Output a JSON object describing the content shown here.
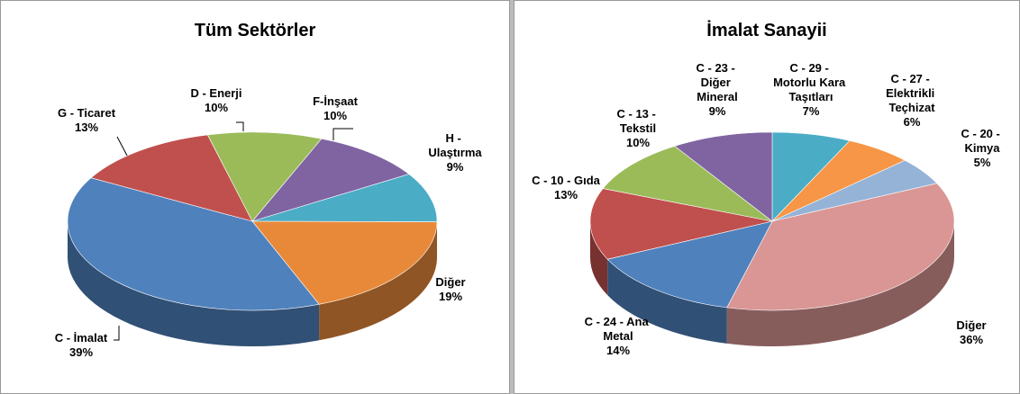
{
  "chart_data": [
    {
      "type": "pie",
      "title": "Tüm Sektörler",
      "categories": [
        "F-İnşaat",
        "H -\nUlaştırma",
        "Diğer",
        "C - İmalat",
        "G - Ticaret",
        "D - Enerji"
      ],
      "values": [
        10,
        9,
        19,
        39,
        13,
        10
      ],
      "value_labels": [
        "10%",
        "9%",
        "19%",
        "39%",
        "13%",
        "10%"
      ],
      "colors": [
        "#8064A2",
        "#4BACC6",
        "#E8893A",
        "#4F81BD",
        "#C0504D",
        "#9BBB59"
      ]
    },
    {
      "type": "pie",
      "title": "İmalat Sanayii",
      "categories": [
        "C - 29 -\nMotorlu Kara\nTaşıtları",
        "C - 27 -\nElektrikli\nTeçhizat",
        "C - 20 -\nKimya",
        "Diğer",
        "C - 24 - Ana\nMetal",
        "C - 10 - Gıda",
        "C - 13 -\nTekstil",
        "C - 23 -\nDiğer\nMineral"
      ],
      "values": [
        7,
        6,
        5,
        36,
        14,
        13,
        10,
        9
      ],
      "value_labels": [
        "7%",
        "6%",
        "5%",
        "36%",
        "14%",
        "13%",
        "10%",
        "9%"
      ],
      "colors": [
        "#4BACC6",
        "#F79646",
        "#95B3D7",
        "#D99694",
        "#4F81BD",
        "#C0504D",
        "#9BBB59",
        "#8064A2"
      ]
    }
  ]
}
